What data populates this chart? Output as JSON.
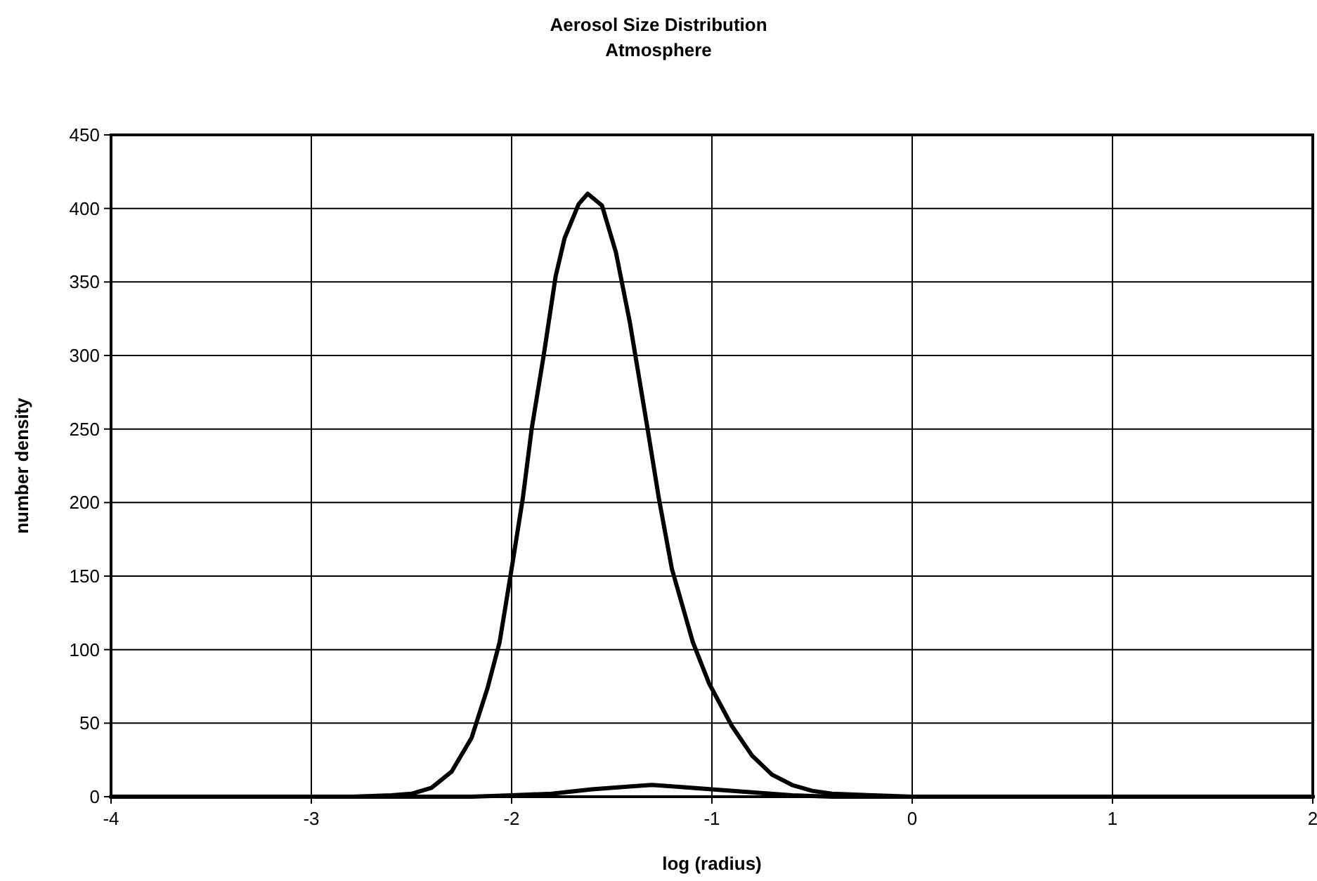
{
  "chart_data": {
    "type": "line",
    "title": "Aerosol Size Distribution",
    "subtitle": "Atmosphere",
    "xlabel": "log (radius)",
    "ylabel": "number density",
    "xlim": [
      -4,
      2
    ],
    "xticks": [
      -4,
      -3,
      -2,
      -1,
      0,
      1,
      2
    ],
    "ylim": [
      0,
      450
    ],
    "yticks": [
      0,
      50,
      100,
      150,
      200,
      250,
      300,
      350,
      400,
      450
    ],
    "grid": true,
    "series": [
      {
        "color": "#000000",
        "x": [
          -4,
          -3,
          -2.8,
          -2.6,
          -2.5,
          -2.4,
          -2.3,
          -2.2,
          -2.12,
          -2.06,
          -2,
          -1.944,
          -1.9,
          -1.84,
          -1.78,
          -1.735,
          -1.665,
          -1.62,
          -1.549,
          -1.479,
          -1.409,
          -1.321,
          -1.265,
          -1.2,
          -1.095,
          -1.014,
          -0.9,
          -0.8,
          -0.7,
          -0.6,
          -0.5,
          -0.4,
          -0.2,
          0,
          0.5,
          1,
          2
        ],
        "values": [
          0,
          0,
          0,
          1,
          2,
          6,
          17,
          40,
          74,
          105,
          155,
          203,
          250,
          300,
          354,
          380,
          403,
          410,
          402,
          370,
          322,
          250,
          203,
          155,
          105,
          77,
          48,
          28,
          15,
          8,
          4,
          2,
          1,
          0,
          0,
          0,
          0
        ]
      },
      {
        "color": "#000000",
        "x": [
          -4,
          -3,
          -2.2,
          -2,
          -1.8,
          -1.6,
          -1.4,
          -1.3,
          -1.2,
          -1,
          -0.8,
          -0.6,
          -0.4,
          -0.2,
          0,
          1,
          2
        ],
        "values": [
          0,
          0,
          0,
          1,
          2,
          5,
          7,
          8,
          7,
          5,
          3,
          1,
          0,
          0,
          0,
          0,
          0
        ]
      }
    ]
  }
}
